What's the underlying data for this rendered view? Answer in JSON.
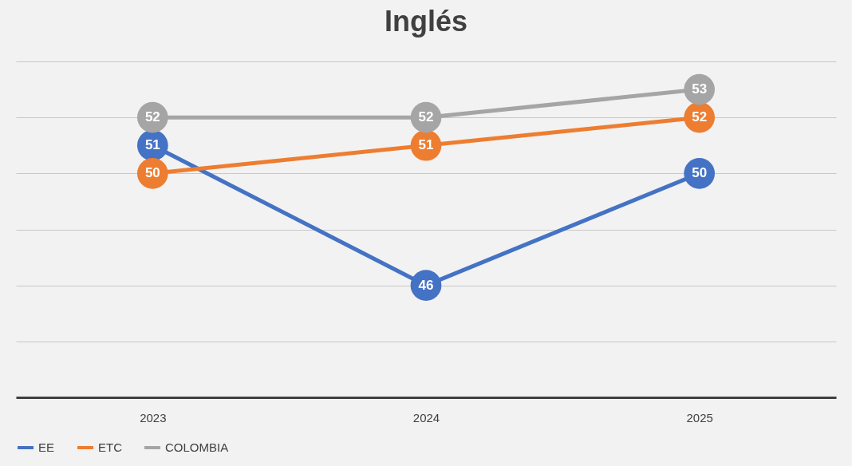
{
  "chart_data": {
    "type": "line",
    "title": "Inglés",
    "categories": [
      "2023",
      "2024",
      "2025"
    ],
    "series": [
      {
        "name": "EE",
        "color": "#4472c4",
        "values": [
          51,
          46,
          50
        ]
      },
      {
        "name": "ETC",
        "color": "#ed7d31",
        "values": [
          50,
          51,
          52
        ]
      },
      {
        "name": "COLOMBIA",
        "color": "#a5a5a5",
        "values": [
          52,
          52,
          53
        ]
      }
    ],
    "ylim": [
      42,
      54
    ],
    "yticks": [
      {
        "value": 42,
        "label": null
      },
      {
        "value": 44,
        "label": null
      },
      {
        "value": 46,
        "label": null
      },
      {
        "value": 48,
        "label": null
      },
      {
        "value": 50,
        "label": null
      },
      {
        "value": 52,
        "label": null
      },
      {
        "value": 54,
        "label": null
      }
    ],
    "grid": "y",
    "legend": "bottom",
    "marker": "circle",
    "data_labels": true,
    "tick_labels": "x",
    "line_style": "solid"
  }
}
